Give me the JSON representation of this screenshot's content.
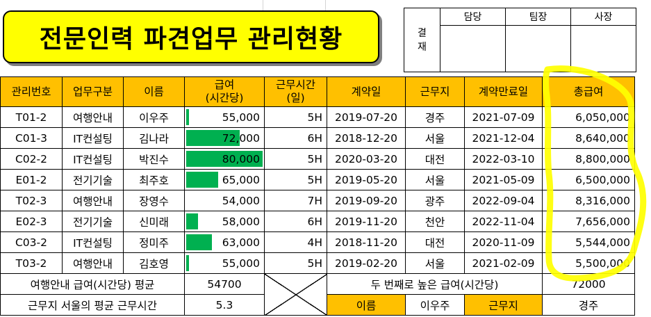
{
  "title": "전문인력 파견업무 관리현황",
  "approval": {
    "label_line1": "결",
    "label_line2": "재",
    "headers": [
      "담당",
      "팀장",
      "사장"
    ]
  },
  "table": {
    "headers": [
      "관리번호",
      "업무구분",
      "이름",
      "급여",
      "(시간당)",
      "근무시간",
      "(일)",
      "계약일",
      "근무지",
      "계약만료일",
      "총급여"
    ],
    "rows": [
      {
        "id": "T01-2",
        "type": "여행안내",
        "name": "이우주",
        "pay": "55,000",
        "hours": "5H",
        "start": "2019-07-20",
        "place": "경주",
        "end": "2021-07-09",
        "total": "6,050,000"
      },
      {
        "id": "C01-3",
        "type": "IT컨설팅",
        "name": "김나라",
        "pay": "72,000",
        "hours": "6H",
        "start": "2018-12-20",
        "place": "서울",
        "end": "2021-12-04",
        "total": "8,640,000"
      },
      {
        "id": "C02-2",
        "type": "IT컨설팅",
        "name": "박진수",
        "pay": "80,000",
        "hours": "5H",
        "start": "2020-03-20",
        "place": "대전",
        "end": "2022-03-10",
        "total": "8,800,000"
      },
      {
        "id": "E01-2",
        "type": "전기기술",
        "name": "최주호",
        "pay": "65,000",
        "hours": "5H",
        "start": "2019-05-20",
        "place": "서울",
        "end": "2021-05-09",
        "total": "6,500,000"
      },
      {
        "id": "T02-3",
        "type": "여행안내",
        "name": "장영수",
        "pay": "54,000",
        "hours": "7H",
        "start": "2019-09-20",
        "place": "광주",
        "end": "2022-09-04",
        "total": "8,316,000"
      },
      {
        "id": "E02-3",
        "type": "전기기술",
        "name": "신미래",
        "pay": "58,000",
        "hours": "6H",
        "start": "2019-11-20",
        "place": "천안",
        "end": "2022-11-04",
        "total": "7,656,000"
      },
      {
        "id": "C03-2",
        "type": "IT컨설팅",
        "name": "정미주",
        "pay": "63,000",
        "hours": "4H",
        "start": "2018-11-20",
        "place": "대전",
        "end": "2020-11-09",
        "total": "5,544,000"
      },
      {
        "id": "T03-2",
        "type": "여행안내",
        "name": "김호영",
        "pay": "55,000",
        "hours": "5H",
        "start": "2019-02-20",
        "place": "서울",
        "end": "2021-02-09",
        "total": "5,500,000"
      }
    ],
    "bar_fraction": [
      0.04,
      0.7,
      1.0,
      0.42,
      0.0,
      0.15,
      0.34,
      0.04
    ],
    "bar_color": "#00b050",
    "header_color": "#ffc000"
  },
  "summary": {
    "avg_pay_label": "여행안내 급여(시간당) 평균",
    "avg_pay_value": "54700",
    "second_pay_label": "두 번째로 높은 급여(시간당)",
    "second_pay_value": "72000",
    "avg_hours_label": "근무지 서울의 평균 근무시간",
    "avg_hours_value": "5.3",
    "name_label": "이름",
    "name_value": "이우주",
    "place_label": "근무지",
    "place_value": "경주"
  },
  "annotation_color": "#ffff00"
}
